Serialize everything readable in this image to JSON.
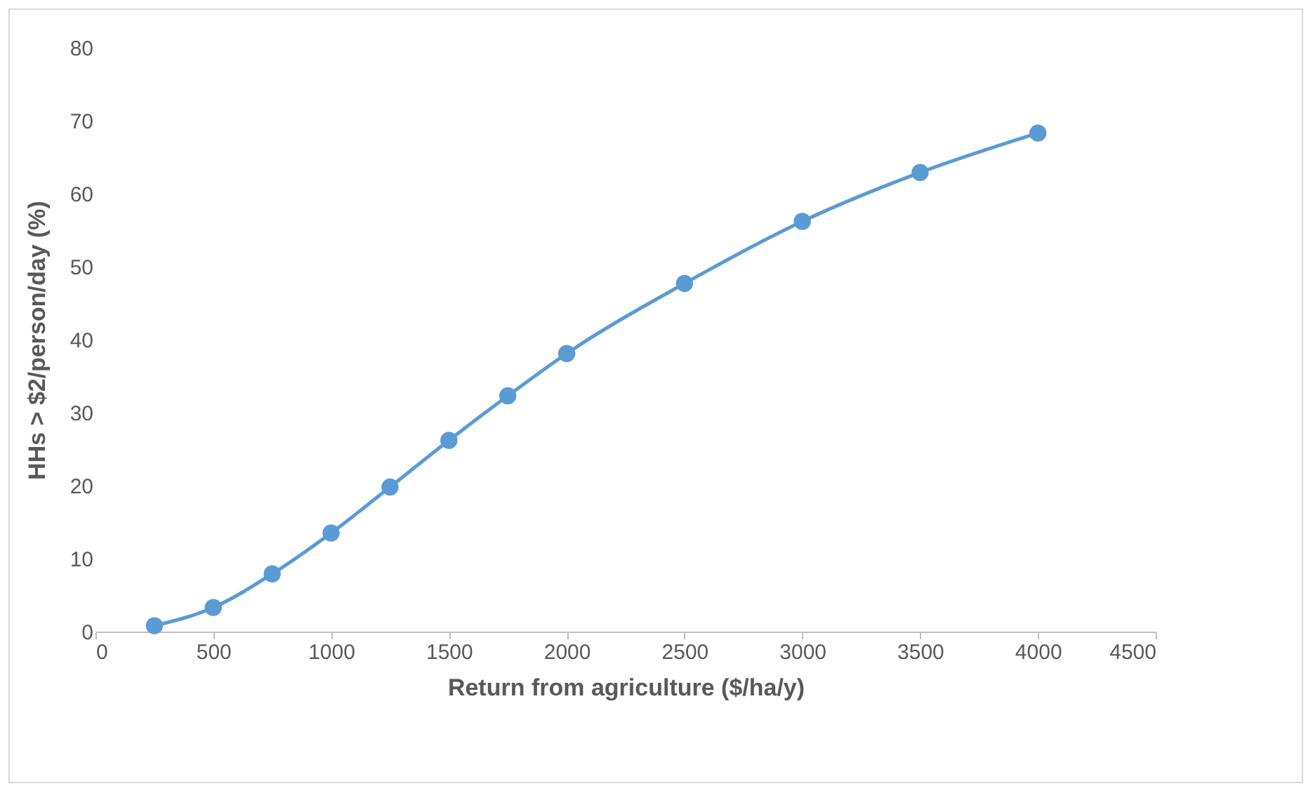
{
  "chart_data": {
    "type": "line",
    "xlabel": "Return from agriculture ($/ha/y)",
    "ylabel": "HHs > $2/person/day (%)",
    "x": [
      250,
      500,
      750,
      1000,
      1250,
      1500,
      1750,
      2000,
      2500,
      3000,
      3500,
      4000
    ],
    "series": [
      {
        "color": "#5b9bd5",
        "values": [
          0.8,
          3.3,
          7.9,
          13.5,
          19.8,
          26.2,
          32.3,
          38.1,
          47.7,
          56.2,
          62.9,
          68.3
        ]
      }
    ],
    "xlim": [
      0,
      4500
    ],
    "xticks": [
      0,
      500,
      1000,
      1500,
      2000,
      2500,
      3000,
      3500,
      4000,
      4500
    ],
    "ylim": [
      0,
      80
    ],
    "yticks": [
      0,
      10,
      20,
      30,
      40,
      50,
      60,
      70,
      80
    ],
    "grid": false,
    "legend": false,
    "marker": "circle",
    "line_style": "solid"
  }
}
